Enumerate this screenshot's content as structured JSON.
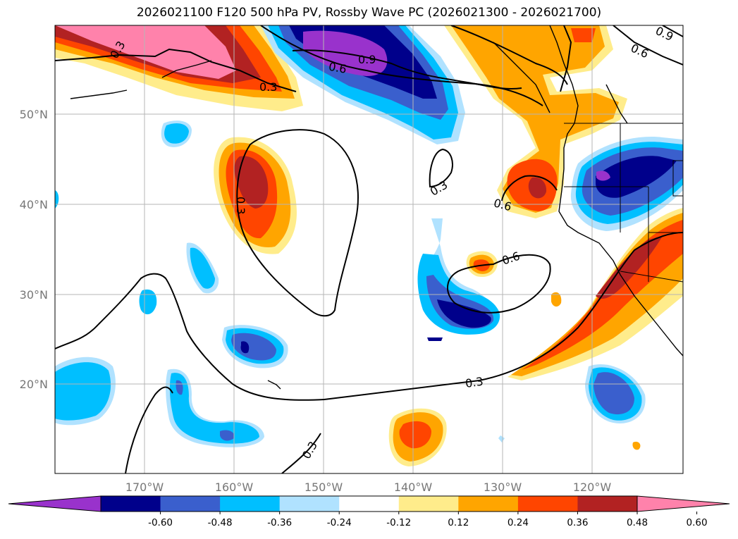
{
  "title": "2026021100 F120 500 hPa PV, Rossby Wave PC (2026021300 - 2026021700)",
  "axes": {
    "lat_labels": [
      "50°N",
      "40°N",
      "30°N",
      "20°N"
    ],
    "lon_labels": [
      "170°W",
      "160°W",
      "150°W",
      "140°W",
      "130°W",
      "120°W"
    ]
  },
  "colorbar": {
    "levels": [
      "-0.60",
      "-0.48",
      "-0.36",
      "-0.24",
      "-0.12",
      "0.12",
      "0.24",
      "0.36",
      "0.48",
      "0.60"
    ],
    "colors": [
      "#9932cc",
      "#00008b",
      "#3a5fcd",
      "#00bfff",
      "#b0e2ff",
      "#ffffff",
      "#ffec8b",
      "#ffa500",
      "#ff4500",
      "#b22222",
      "#ff82ab"
    ]
  },
  "contour_labels": [
    "0.3",
    "0.3",
    "0.9",
    "0.6",
    "0.3",
    "0.3",
    "0.6",
    "0.6",
    "0.3",
    "0.3",
    "0.6",
    "0.9"
  ]
}
